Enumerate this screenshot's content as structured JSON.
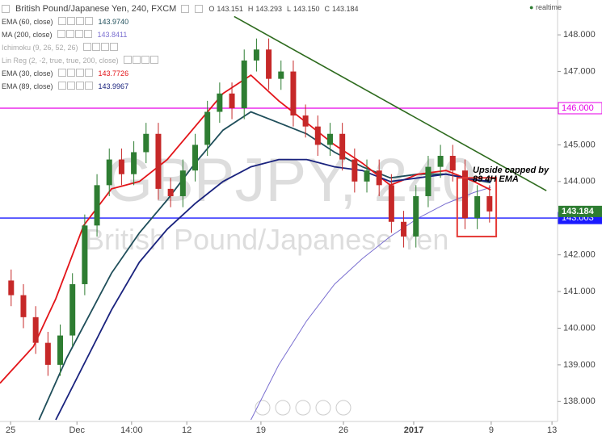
{
  "header": {
    "title": "British Pound/Japanese Yen, 240, FXCM",
    "ohlc": [
      {
        "label": "O",
        "value": "143.151"
      },
      {
        "label": "H",
        "value": "143.293"
      },
      {
        "label": "L",
        "value": "143.150"
      },
      {
        "label": "C",
        "value": "143.184"
      }
    ],
    "status": "realtime"
  },
  "watermark": {
    "symbol": "GBPJPY, 240",
    "description": "British Pound/Japanese Yen"
  },
  "chart_data": {
    "type": "candlestick",
    "xlim": [
      0,
      100
    ],
    "ylim": [
      137.5,
      148.95
    ],
    "xticks": [
      {
        "value": 1.9,
        "label": "25"
      },
      {
        "value": 13.8,
        "label": "Dec"
      },
      {
        "value": 23.6,
        "label": "14:00"
      },
      {
        "value": 33.5,
        "label": "12"
      },
      {
        "value": 46.8,
        "label": "19"
      },
      {
        "value": 61.6,
        "label": "26"
      },
      {
        "value": 74.2,
        "label": "2017"
      },
      {
        "value": 88.1,
        "label": "9"
      },
      {
        "value": 99,
        "label": "13"
      }
    ],
    "yticks": [
      {
        "value": 138,
        "label": "138.000"
      },
      {
        "value": 139,
        "label": "139.000"
      },
      {
        "value": 140,
        "label": "140.000"
      },
      {
        "value": 141,
        "label": "141.000"
      },
      {
        "value": 142,
        "label": "142.000"
      },
      {
        "value": 144,
        "label": "144.000"
      },
      {
        "value": 145,
        "label": "145.000"
      },
      {
        "value": 147,
        "label": "147.000"
      },
      {
        "value": 148,
        "label": "148.000"
      }
    ],
    "up_color": "#2e7d32",
    "down_color": "#c62828",
    "x": [
      2,
      4.2,
      6.4,
      8.6,
      10.8,
      13,
      15.2,
      17.4,
      19.6,
      21.8,
      24,
      26.2,
      28.4,
      30.6,
      32.8,
      35,
      37.2,
      39.4,
      41.6,
      43.8,
      46,
      48.2,
      50.4,
      52.6,
      54.8,
      57,
      59.2,
      61.4,
      63.6,
      65.8,
      68,
      70.2,
      72.4,
      74.6,
      76.8,
      79,
      81.2,
      83.4,
      85.6,
      87.8
    ],
    "open": [
      141.3,
      140.9,
      140.3,
      139.6,
      139.0,
      139.8,
      141.2,
      142.8,
      143.9,
      144.6,
      144.2,
      144.8,
      145.3,
      143.8,
      143.6,
      144.3,
      145.0,
      145.9,
      146.4,
      146.0,
      147.3,
      147.6,
      146.8,
      147.0,
      145.8,
      145.5,
      145.0,
      145.3,
      144.6,
      144.0,
      144.3,
      143.9,
      142.9,
      142.5,
      143.6,
      144.4,
      144.7,
      144.3,
      143.0,
      143.6
    ],
    "high": [
      141.6,
      141.2,
      140.6,
      139.9,
      140.1,
      141.5,
      143.1,
      144.2,
      144.9,
      144.9,
      145.1,
      145.6,
      145.6,
      144.1,
      144.6,
      145.3,
      146.2,
      146.7,
      146.7,
      147.6,
      147.9,
      147.9,
      147.3,
      147.3,
      146.1,
      145.8,
      145.6,
      145.6,
      144.9,
      144.6,
      144.6,
      144.2,
      143.2,
      143.9,
      144.7,
      145.0,
      145.0,
      144.6,
      143.9,
      143.9
    ],
    "low": [
      140.6,
      140.0,
      139.3,
      138.7,
      138.7,
      139.5,
      140.9,
      142.5,
      143.6,
      143.9,
      143.9,
      144.5,
      143.5,
      143.3,
      143.3,
      144.0,
      144.7,
      145.6,
      145.7,
      145.7,
      147.0,
      146.5,
      146.5,
      145.5,
      145.2,
      144.7,
      144.7,
      144.3,
      143.7,
      143.7,
      143.6,
      142.6,
      142.2,
      142.2,
      143.3,
      144.1,
      144.0,
      142.7,
      142.7,
      142.88
    ],
    "close": [
      140.9,
      140.3,
      139.6,
      139.0,
      139.8,
      141.2,
      142.8,
      143.9,
      144.6,
      144.2,
      144.8,
      145.3,
      143.8,
      143.6,
      144.3,
      145.0,
      145.9,
      146.4,
      146.0,
      147.3,
      147.6,
      146.8,
      147.0,
      145.8,
      145.5,
      145.0,
      145.3,
      144.6,
      144.0,
      144.3,
      143.9,
      142.9,
      142.5,
      143.6,
      144.4,
      144.7,
      144.3,
      143.0,
      143.6,
      143.184
    ],
    "indicators": [
      {
        "name": "EMA (60, close)",
        "last": "143.9740",
        "color": "#1f4e5a",
        "x": [
          7,
          12,
          20,
          25,
          30,
          35,
          40,
          45,
          50,
          55,
          60,
          65,
          70,
          75,
          80,
          85,
          88
        ],
        "values": [
          137.5,
          139.2,
          141.5,
          142.6,
          143.5,
          144.5,
          145.4,
          145.9,
          145.6,
          145.3,
          144.8,
          144.4,
          144.1,
          144.2,
          144.2,
          144.05,
          143.97
        ]
      },
      {
        "name": "MA (200, close)",
        "last": "143.8411",
        "color": "#7a6fd0",
        "x": [
          45,
          50,
          55,
          60,
          65,
          70,
          75,
          80,
          85,
          88
        ],
        "values": [
          137.5,
          139.0,
          140.2,
          141.2,
          141.9,
          142.5,
          143.0,
          143.4,
          143.7,
          143.84
        ]
      },
      {
        "name": "Ichimoku (9, 26, 52, 26)",
        "color": "#9aa6b2"
      },
      {
        "name": "Lin Reg (2, -2, true, true, 200, close)",
        "color": "#9aa6b2"
      },
      {
        "name": "EMA (30, close)",
        "last": "143.7726",
        "color": "#e3151a",
        "x": [
          0,
          6,
          10,
          15,
          20,
          25,
          30,
          35,
          40,
          45,
          50,
          55,
          60,
          65,
          70,
          75,
          80,
          85,
          88
        ],
        "values": [
          138.5,
          139.5,
          140.8,
          142.8,
          143.8,
          144.0,
          144.6,
          145.5,
          146.4,
          146.9,
          146.2,
          145.6,
          145.0,
          144.5,
          143.9,
          144.2,
          144.3,
          144.0,
          143.77
        ]
      },
      {
        "name": "EMA (89, close)",
        "last": "143.9967",
        "color": "#1a237e",
        "x": [
          10,
          15,
          20,
          25,
          30,
          35,
          40,
          45,
          50,
          55,
          60,
          65,
          70,
          75,
          80,
          85,
          88
        ],
        "values": [
          137.5,
          139.0,
          140.5,
          141.8,
          142.7,
          143.4,
          144.0,
          144.4,
          144.6,
          144.6,
          144.4,
          144.3,
          144.0,
          144.1,
          144.2,
          144.05,
          144.0
        ]
      }
    ],
    "levels": [
      {
        "value": 146,
        "label": "146.000",
        "color": "#e600e6"
      },
      {
        "value": 143.003,
        "color": "#1a1aff"
      }
    ],
    "last_price": {
      "value": 143.184,
      "color": "#2e7d32"
    },
    "trendline": {
      "x": [
        42,
        98
      ],
      "y": [
        148.5,
        143.75
      ],
      "color": "#2e6b1e"
    },
    "box": {
      "x": [
        82,
        89
      ],
      "y": [
        144.1,
        142.5
      ],
      "color": "#e53935"
    },
    "annotation": [
      "Upside capped by",
      "89 4H EMA"
    ]
  }
}
